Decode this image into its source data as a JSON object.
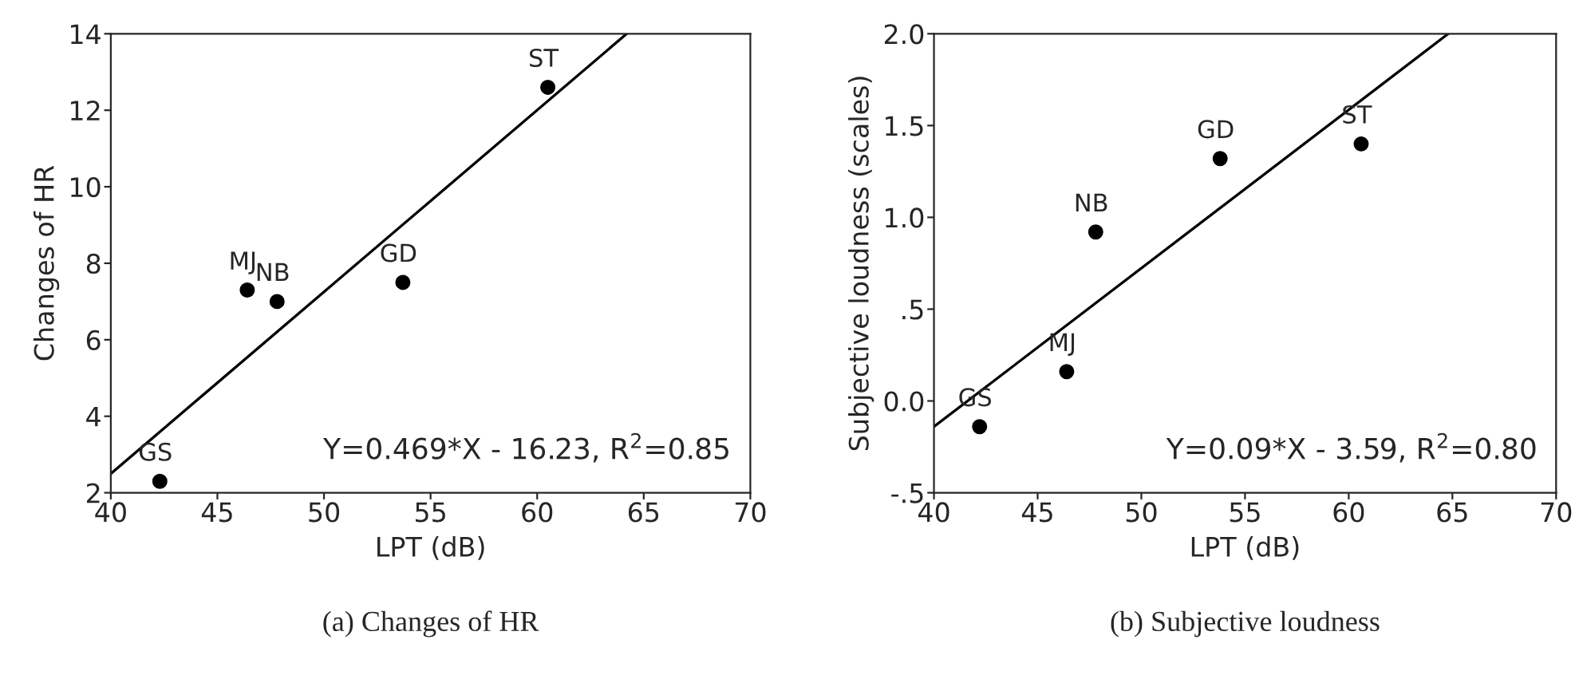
{
  "chart_data": [
    {
      "type": "scatter",
      "title": "(a) Changes of HR",
      "xlabel": "LPT (dB)",
      "ylabel": "Changes of HR",
      "xlim": [
        40,
        70
      ],
      "xticks": [
        40,
        45,
        50,
        55,
        60,
        65,
        70
      ],
      "ylim": [
        2,
        14
      ],
      "yticks": [
        2,
        4,
        6,
        8,
        10,
        12,
        14
      ],
      "grid": false,
      "marker": "circle",
      "series": [
        {
          "color": "#000000",
          "x": [
            42.3,
            46.4,
            47.8,
            53.7,
            60.5
          ],
          "values": [
            2.3,
            7.3,
            7.0,
            7.5,
            12.6
          ]
        },
        {
          "type": "line",
          "color": "#000000",
          "x": [
            40,
            64.2
          ],
          "values": [
            2.5,
            14.0
          ],
          "marker": "none",
          "line_style": "solid"
        }
      ],
      "annotations": [
        {
          "text": "GS",
          "x": 42.3,
          "y": 2.3
        },
        {
          "text": "MJ",
          "x": 46.4,
          "y": 7.3
        },
        {
          "text": "NB",
          "x": 47.8,
          "y": 7.0
        },
        {
          "text": "GD",
          "x": 53.7,
          "y": 7.5
        },
        {
          "text": "ST",
          "x": 60.5,
          "y": 12.6
        },
        "Y=0.469*X - 16.23, R$^{2}$=0.85"
      ]
    },
    {
      "type": "scatter",
      "title": "(b) Subjective loudness",
      "xlabel": "LPT (dB)",
      "ylabel": "Subjective loudness (scales)",
      "xlim": [
        40,
        70
      ],
      "xticks": [
        40,
        45,
        50,
        55,
        60,
        65,
        70
      ],
      "ylim": [
        -0.5,
        2.0
      ],
      "yticks": [
        {
          "value": -0.5,
          "label": "-.5"
        },
        {
          "value": 0,
          "label": "0.0"
        },
        {
          "value": 0.5,
          "label": ".5"
        },
        {
          "value": 1.0,
          "label": "1.0"
        },
        {
          "value": 1.5,
          "label": "1.5"
        },
        {
          "value": 2.0,
          "label": "2.0"
        }
      ],
      "grid": false,
      "marker": "circle",
      "series": [
        {
          "color": "#000000",
          "x": [
            42.2,
            46.4,
            47.8,
            53.8,
            60.6
          ],
          "values": [
            -0.14,
            0.16,
            0.92,
            1.32,
            1.4
          ]
        },
        {
          "type": "line",
          "color": "#000000",
          "x": [
            40,
            64.8
          ],
          "values": [
            -0.14,
            2.0
          ],
          "marker": "none",
          "line_style": "solid"
        }
      ],
      "annotations": [
        {
          "text": "GS",
          "x": 42.2,
          "y": -0.14
        },
        {
          "text": "MJ",
          "x": 46.4,
          "y": 0.16
        },
        {
          "text": "NB",
          "x": 47.8,
          "y": 0.92
        },
        {
          "text": "GD",
          "x": 53.8,
          "y": 1.32
        },
        {
          "text": "ST",
          "x": 60.6,
          "y": 1.4
        },
        "Y=0.09*X - 3.59, R$^{2}$=0.80"
      ]
    }
  ]
}
